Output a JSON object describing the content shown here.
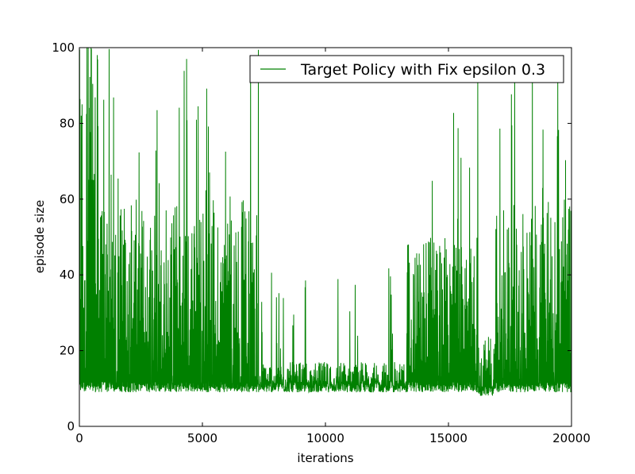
{
  "chart_data": {
    "type": "line",
    "title": "",
    "xlabel": "iterations",
    "ylabel": "episode size",
    "xlim": [
      0,
      20000
    ],
    "ylim": [
      0,
      100
    ],
    "x_ticks": [
      0,
      5000,
      10000,
      15000,
      20000
    ],
    "x_tick_labels": [
      "0",
      "5000",
      "10000",
      "15000",
      "20000"
    ],
    "y_ticks": [
      0,
      20,
      40,
      60,
      80,
      100
    ],
    "y_tick_labels": [
      "0",
      "20",
      "40",
      "60",
      "80",
      "100"
    ],
    "grid": false,
    "legend_position": "top-right",
    "series": [
      {
        "name": "Target Policy with Fix epsilon 0.3",
        "color": "#008000",
        "iterations": 20000,
        "segments": [
          {
            "x_range": [
              0,
              800
            ],
            "floor": 9,
            "base_range": [
              15,
              100
            ],
            "max_spike": 100
          },
          {
            "x_range": [
              800,
              2500
            ],
            "floor": 9,
            "base_range": [
              10,
              60
            ],
            "max_spike": 100
          },
          {
            "x_range": [
              2500,
              7300
            ],
            "floor": 9,
            "base_range": [
              10,
              60
            ],
            "max_spike": 100
          },
          {
            "x_range": [
              7300,
              13300
            ],
            "floor": 9,
            "base_range": [
              9,
              17
            ],
            "max_spike": 44
          },
          {
            "x_range": [
              13300,
              16200
            ],
            "floor": 9,
            "base_range": [
              10,
              50
            ],
            "max_spike": 100
          },
          {
            "x_range": [
              16200,
              16900
            ],
            "floor": 8,
            "base_range": [
              8,
              21
            ],
            "max_spike": 25
          },
          {
            "x_range": [
              16900,
              20000
            ],
            "floor": 9,
            "base_range": [
              10,
              60
            ],
            "max_spike": 100
          }
        ]
      }
    ]
  }
}
